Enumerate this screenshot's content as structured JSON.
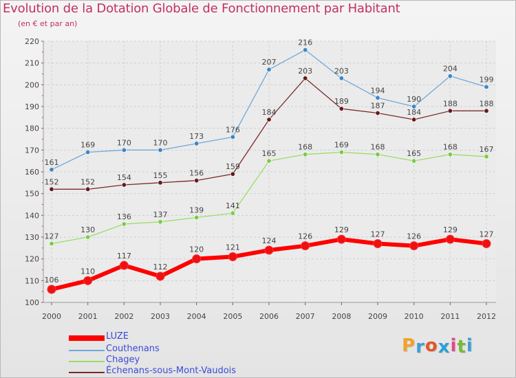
{
  "header": {
    "title": "Evolution de la Dotation Globale de Fonctionnement par Habitant",
    "subtitle": "(en € et par an)"
  },
  "logo": {
    "text": "Proxiti",
    "letters": [
      "P",
      "r",
      "o",
      "x",
      "i",
      "t",
      "i"
    ],
    "colors": [
      "#f2a22b",
      "#3aa0d8",
      "#e0572a",
      "#2aa0d8",
      "#e04a8a",
      "#7ab83a",
      "#3aa0d8"
    ]
  },
  "chart_data": {
    "type": "line",
    "title": "Evolution de la Dotation Globale de Fonctionnement par Habitant",
    "subtitle": "(en € et par an)",
    "xlabel": "",
    "ylabel": "",
    "ylim": [
      100,
      220
    ],
    "yticks": [
      100,
      110,
      120,
      130,
      140,
      150,
      160,
      170,
      180,
      190,
      200,
      210,
      220
    ],
    "categories": [
      "2000",
      "2001",
      "2002",
      "2003",
      "2004",
      "2005",
      "2006",
      "2007",
      "2008",
      "2009",
      "2010",
      "2011",
      "2012"
    ],
    "series": [
      {
        "name": "LUZE",
        "color": "#ff0000",
        "marker": "#ee1111",
        "width": 6,
        "radius": 6,
        "values": [
          106,
          110,
          117,
          112,
          120,
          121,
          124,
          126,
          129,
          127,
          126,
          129,
          127
        ]
      },
      {
        "name": "Couthenans",
        "color": "#6fa8dc",
        "marker": "#3d85c6",
        "width": 1.3,
        "radius": 3.2,
        "values": [
          161,
          169,
          170,
          170,
          173,
          176,
          207,
          216,
          203,
          194,
          190,
          204,
          199
        ]
      },
      {
        "name": "Chagey",
        "color": "#99dd66",
        "marker": "#77cc44",
        "width": 1.3,
        "radius": 3.2,
        "values": [
          127,
          130,
          136,
          137,
          139,
          141,
          165,
          168,
          169,
          168,
          165,
          168,
          167
        ]
      },
      {
        "name": "Échenans-sous-Mont-Vaudois",
        "color": "#7a2a2a",
        "marker": "#661a1a",
        "width": 1.3,
        "radius": 3.2,
        "values": [
          152,
          152,
          154,
          155,
          156,
          159,
          184,
          203,
          189,
          187,
          184,
          188,
          188
        ]
      }
    ],
    "grid": true,
    "legend": "bottom-left"
  }
}
